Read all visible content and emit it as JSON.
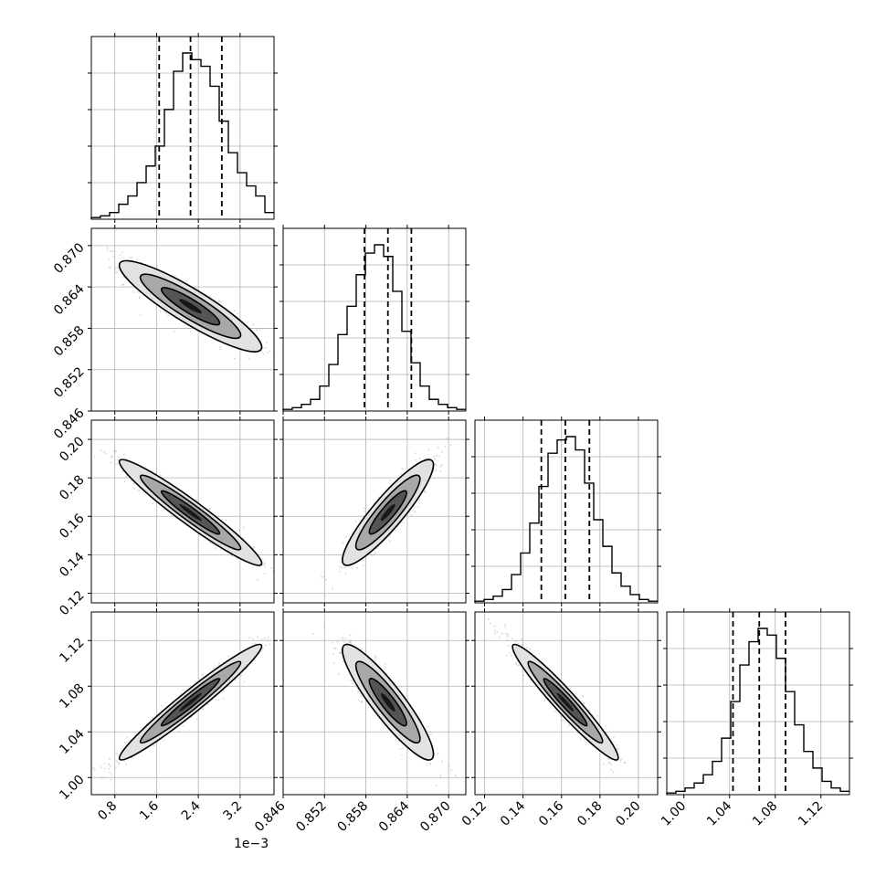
{
  "chart_data": {
    "type": "corner",
    "histogram_bins": 20,
    "quantile_style": "dashed",
    "grid": true,
    "colors": {
      "line": "#000000",
      "grid": "#b0b0b0",
      "points": "#9a9a9a",
      "background": "#ffffff"
    },
    "offset_text": "1e−3",
    "parameters": [
      {
        "id": "p0",
        "range": [
          0.35,
          3.85
        ],
        "mean": 2.25,
        "sd": 0.62,
        "quantiles": [
          1.65,
          2.25,
          2.85
        ],
        "ticks": [
          0.8,
          1.6,
          2.4,
          3.2
        ],
        "tick_labels": [
          "0.8",
          "1.6",
          "2.4",
          "3.2"
        ],
        "hist_counts": [
          1,
          2,
          4,
          9,
          14,
          22,
          32,
          44,
          66,
          89,
          100,
          96,
          92,
          80,
          59,
          40,
          28,
          20,
          14,
          4
        ]
      },
      {
        "id": "p1",
        "range": [
          0.846,
          0.8725
        ],
        "mean": 0.8612,
        "sd": 0.003,
        "quantiles": [
          0.8578,
          0.8612,
          0.8646
        ],
        "ticks": [
          0.846,
          0.852,
          0.858,
          0.864,
          0.87
        ],
        "tick_labels": [
          "0.846",
          "0.852",
          "0.858",
          "0.864",
          "0.870"
        ],
        "hist_counts": [
          1,
          2,
          4,
          7,
          15,
          28,
          46,
          63,
          82,
          95,
          100,
          93,
          72,
          48,
          29,
          15,
          7,
          4,
          2,
          1
        ]
      },
      {
        "id": "p2",
        "range": [
          0.115,
          0.21
        ],
        "mean": 0.162,
        "sd": 0.0125,
        "quantiles": [
          0.1495,
          0.162,
          0.1745
        ],
        "ticks": [
          0.12,
          0.14,
          0.16,
          0.18,
          0.2
        ],
        "tick_labels": [
          "0.12",
          "0.14",
          "0.16",
          "0.18",
          "0.20"
        ],
        "hist_counts": [
          1,
          2,
          4,
          8,
          17,
          30,
          48,
          70,
          90,
          98,
          100,
          92,
          72,
          50,
          34,
          18,
          10,
          5,
          2,
          1
        ]
      },
      {
        "id": "p3",
        "range": [
          0.985,
          1.145
        ],
        "mean": 1.066,
        "sd": 0.023,
        "quantiles": [
          1.043,
          1.066,
          1.089
        ],
        "ticks": [
          1.0,
          1.04,
          1.08,
          1.12
        ],
        "tick_labels": [
          "1.00",
          "1.04",
          "1.08",
          "1.12"
        ],
        "hist_counts": [
          1,
          2,
          4,
          7,
          12,
          20,
          34,
          56,
          78,
          92,
          100,
          96,
          82,
          62,
          42,
          26,
          16,
          8,
          4,
          2
        ]
      }
    ],
    "correlations": [
      {
        "row": 1,
        "col": 0,
        "r": -0.9
      },
      {
        "row": 2,
        "col": 0,
        "r": -0.96
      },
      {
        "row": 2,
        "col": 1,
        "r": 0.9
      },
      {
        "row": 3,
        "col": 0,
        "r": 0.97
      },
      {
        "row": 3,
        "col": 1,
        "r": -0.9
      },
      {
        "row": 3,
        "col": 2,
        "r": -0.96
      }
    ]
  }
}
